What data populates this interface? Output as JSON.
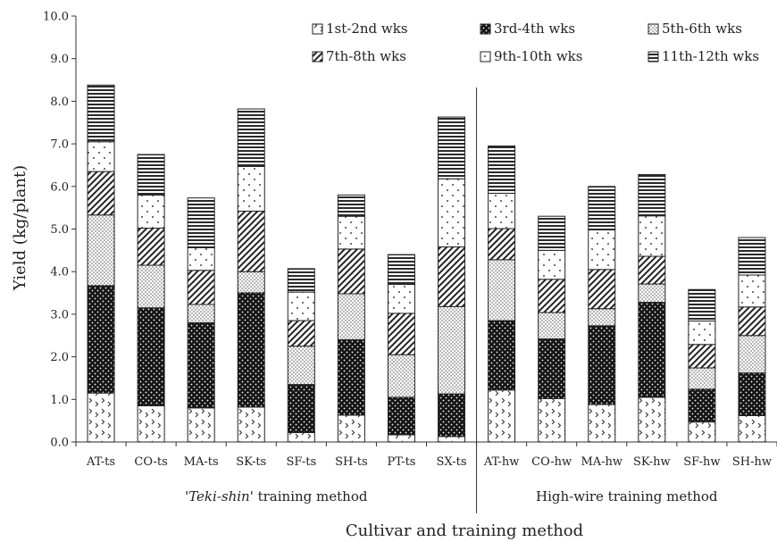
{
  "chart_data": {
    "type": "bar",
    "stacked": true,
    "title": "",
    "xlabel": "Cultivar and training method",
    "ylabel": "Yield (kg/plant)",
    "ylim": [
      0,
      10
    ],
    "yticks": [
      "0.0",
      "1.0",
      "2.0",
      "3.0",
      "4.0",
      "5.0",
      "6.0",
      "7.0",
      "8.0",
      "9.0",
      "10.0"
    ],
    "grid": false,
    "legend_position": "top-right",
    "categories": [
      "AT-ts",
      "CO-ts",
      "MA-ts",
      "SK-ts",
      "SF-ts",
      "SH-ts",
      "PT-ts",
      "SX-ts",
      "AT-hw",
      "CO-hw",
      "MA-hw",
      "SK-hw",
      "SF-hw",
      "SH-hw"
    ],
    "groups": [
      {
        "label_italic": "'Teki-shin'",
        "label_rest": " training method",
        "categories": [
          "AT-ts",
          "CO-ts",
          "MA-ts",
          "SK-ts",
          "SF-ts",
          "SH-ts",
          "PT-ts",
          "SX-ts"
        ]
      },
      {
        "label_italic": "",
        "label_rest": "High-wire training method",
        "categories": [
          "AT-hw",
          "CO-hw",
          "MA-hw",
          "SK-hw",
          "SF-hw",
          "SH-hw"
        ]
      }
    ],
    "series": [
      {
        "name": "1st-2nd wks",
        "pattern": "chevron",
        "values": [
          1.15,
          0.85,
          0.8,
          0.82,
          0.22,
          0.63,
          0.17,
          0.13,
          1.22,
          1.02,
          0.88,
          1.05,
          0.47,
          0.62
        ]
      },
      {
        "name": "3rd-4th wks",
        "pattern": "dark-dots",
        "values": [
          2.52,
          2.3,
          2.0,
          2.68,
          1.13,
          1.77,
          0.88,
          1.0,
          1.63,
          1.4,
          1.85,
          2.23,
          0.77,
          1.0
        ]
      },
      {
        "name": "5th-6th wks",
        "pattern": "fine-dots",
        "values": [
          1.66,
          1.0,
          0.43,
          0.5,
          0.9,
          1.08,
          1.0,
          2.05,
          1.43,
          0.62,
          0.4,
          0.43,
          0.5,
          0.88
        ]
      },
      {
        "name": "7th-8th wks",
        "pattern": "diagonal",
        "values": [
          1.02,
          0.87,
          0.8,
          1.42,
          0.6,
          1.05,
          0.97,
          1.4,
          0.73,
          0.78,
          0.92,
          0.65,
          0.55,
          0.67
        ]
      },
      {
        "name": "9th-10th wks",
        "pattern": "sparse-dots",
        "values": [
          0.7,
          0.78,
          0.53,
          1.05,
          0.67,
          0.77,
          0.68,
          1.6,
          0.83,
          0.68,
          0.93,
          0.95,
          0.55,
          0.75
        ]
      },
      {
        "name": "11th-12th wks",
        "pattern": "horizontal",
        "values": [
          1.33,
          0.95,
          1.17,
          1.35,
          0.55,
          0.5,
          0.7,
          1.45,
          1.11,
          0.8,
          1.02,
          0.97,
          0.74,
          0.88
        ]
      }
    ]
  }
}
